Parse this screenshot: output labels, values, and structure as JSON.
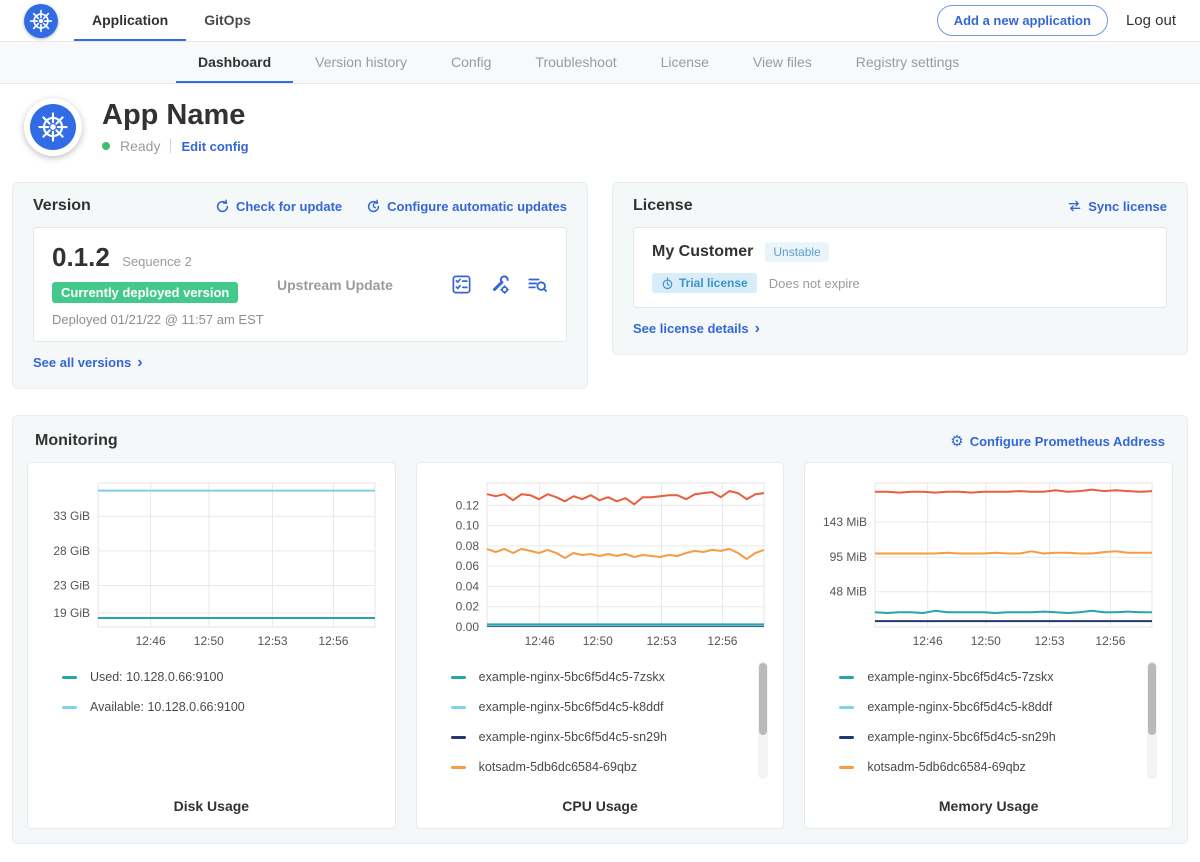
{
  "topnav": {
    "tabs": [
      {
        "label": "Application",
        "active": true
      },
      {
        "label": "GitOps",
        "active": false
      }
    ],
    "add_application_button": "Add a new application",
    "logout_label": "Log out"
  },
  "subnav": {
    "tabs": [
      {
        "label": "Dashboard",
        "active": true
      },
      {
        "label": "Version history",
        "active": false
      },
      {
        "label": "Config",
        "active": false
      },
      {
        "label": "Troubleshoot",
        "active": false
      },
      {
        "label": "License",
        "active": false
      },
      {
        "label": "View files",
        "active": false
      },
      {
        "label": "Registry settings",
        "active": false
      }
    ]
  },
  "app_header": {
    "title": "App Name",
    "status": "Ready",
    "edit_config_label": "Edit config"
  },
  "version_card": {
    "title": "Version",
    "check_update_label": "Check for update",
    "auto_updates_label": "Configure automatic updates",
    "version_number": "0.1.2",
    "sequence_label": "Sequence 2",
    "deployed_badge": "Currently deployed version",
    "deployed_at": "Deployed 01/21/22 @ 11:57 am EST",
    "source": "Upstream Update",
    "see_all_label": "See all versions"
  },
  "license_card": {
    "title": "License",
    "sync_label": "Sync license",
    "customer_name": "My Customer",
    "channel_badge": "Unstable",
    "trial_badge": "Trial license",
    "expiry": "Does not expire",
    "details_label": "See license details"
  },
  "monitoring": {
    "title": "Monitoring",
    "configure_label": "Configure Prometheus Address"
  },
  "colors": {
    "accent_blue": "#3566d6",
    "tab_underline_blue": "#326de6",
    "deployed_green": "#44c98c",
    "status_green": "#44bb66",
    "teal": "#29a5a3",
    "light_blue": "#7fd0e8",
    "navy": "#223a70",
    "orange": "#f79b44",
    "red_orange": "#ea5d3d"
  },
  "chart_data": [
    {
      "type": "line",
      "title": "Disk Usage",
      "xlabel": "",
      "ylabel": "",
      "ylim": [
        17,
        37.8
      ],
      "y_ticks": [
        {
          "v": 33,
          "label": "33 GiB"
        },
        {
          "v": 28,
          "label": "28 GiB"
        },
        {
          "v": 23,
          "label": "23 GiB"
        },
        {
          "v": 19,
          "label": "19 GiB"
        }
      ],
      "x_ticks": [
        {
          "f": 0.19,
          "label": "12:46"
        },
        {
          "f": 0.4,
          "label": "12:50"
        },
        {
          "f": 0.63,
          "label": "12:53"
        },
        {
          "f": 0.85,
          "label": "12:56"
        }
      ],
      "legend": [
        {
          "label": "Used: 10.128.0.66:9100",
          "color": "#29a5a3"
        },
        {
          "label": "Available: 10.128.0.66:9100",
          "color": "#7fd0e8"
        }
      ],
      "series": [
        {
          "name": "Available: 10.128.0.66:9100",
          "color": "#7fd0e8",
          "values": [
            36.7,
            36.7
          ]
        },
        {
          "name": "Used: 10.128.0.66:9100",
          "color": "#29a5a3",
          "values": [
            18.3,
            18.3
          ]
        }
      ],
      "has_scrollbar": false
    },
    {
      "type": "line",
      "title": "CPU Usage",
      "xlabel": "",
      "ylabel": "",
      "ylim": [
        0,
        0.142
      ],
      "y_ticks": [
        {
          "v": 0.12,
          "label": "0.12"
        },
        {
          "v": 0.1,
          "label": "0.10"
        },
        {
          "v": 0.08,
          "label": "0.08"
        },
        {
          "v": 0.06,
          "label": "0.06"
        },
        {
          "v": 0.04,
          "label": "0.04"
        },
        {
          "v": 0.02,
          "label": "0.02"
        },
        {
          "v": 0.0,
          "label": "0.00"
        }
      ],
      "x_ticks": [
        {
          "f": 0.19,
          "label": "12:46"
        },
        {
          "f": 0.4,
          "label": "12:50"
        },
        {
          "f": 0.63,
          "label": "12:53"
        },
        {
          "f": 0.85,
          "label": "12:56"
        }
      ],
      "legend": [
        {
          "label": "example-nginx-5bc6f5d4c5-7zskx",
          "color": "#29a5a3"
        },
        {
          "label": "example-nginx-5bc6f5d4c5-k8ddf",
          "color": "#7fd0e8"
        },
        {
          "label": "example-nginx-5bc6f5d4c5-sn29h",
          "color": "#223a70"
        },
        {
          "label": "kotsadm-5db6dc6584-69qbz",
          "color": "#f79b44"
        }
      ],
      "series": [
        {
          "name": "example-nginx-5bc6f5d4c5-sn29h",
          "color": "#223a70",
          "values": [
            0.001,
            0.001
          ]
        },
        {
          "name": "example-nginx-5bc6f5d4c5-k8ddf",
          "color": "#7fd0e8",
          "values": [
            0.0018,
            0.0018
          ]
        },
        {
          "name": "example-nginx-5bc6f5d4c5-7zskx",
          "color": "#29a5a3",
          "values": [
            0.0026,
            0.0026
          ]
        },
        {
          "name": "kotsadm-5db6dc6584-69qbz",
          "color": "#f79b44",
          "values": [
            0.077,
            0.074,
            0.077,
            0.073,
            0.077,
            0.075,
            0.073,
            0.076,
            0.073,
            0.068,
            0.073,
            0.071,
            0.072,
            0.07,
            0.072,
            0.07,
            0.072,
            0.069,
            0.071,
            0.07,
            0.069,
            0.071,
            0.07,
            0.073,
            0.075,
            0.074,
            0.076,
            0.075,
            0.077,
            0.073,
            0.067,
            0.073,
            0.076
          ]
        },
        {
          "name": "",
          "color": "#ea5d3d",
          "values": [
            0.131,
            0.129,
            0.131,
            0.125,
            0.131,
            0.13,
            0.126,
            0.131,
            0.128,
            0.124,
            0.129,
            0.126,
            0.13,
            0.125,
            0.128,
            0.124,
            0.127,
            0.121,
            0.128,
            0.128,
            0.129,
            0.13,
            0.13,
            0.126,
            0.131,
            0.132,
            0.133,
            0.128,
            0.134,
            0.132,
            0.126,
            0.131,
            0.132
          ]
        }
      ],
      "has_scrollbar": true
    },
    {
      "type": "line",
      "title": "Memory Usage",
      "xlabel": "",
      "ylabel": "",
      "ylim": [
        0,
        196
      ],
      "y_ticks": [
        {
          "v": 143,
          "label": "143 MiB"
        },
        {
          "v": 95,
          "label": "95 MiB"
        },
        {
          "v": 48,
          "label": "48 MiB"
        }
      ],
      "x_ticks": [
        {
          "f": 0.19,
          "label": "12:46"
        },
        {
          "f": 0.4,
          "label": "12:50"
        },
        {
          "f": 0.63,
          "label": "12:53"
        },
        {
          "f": 0.85,
          "label": "12:56"
        }
      ],
      "legend": [
        {
          "label": "example-nginx-5bc6f5d4c5-7zskx",
          "color": "#29a5a3"
        },
        {
          "label": "example-nginx-5bc6f5d4c5-k8ddf",
          "color": "#7fd0e8"
        },
        {
          "label": "example-nginx-5bc6f5d4c5-sn29h",
          "color": "#223a70"
        },
        {
          "label": "kotsadm-5db6dc6584-69qbz",
          "color": "#f79b44"
        }
      ],
      "series": [
        {
          "name": "example-nginx-5bc6f5d4c5-sn29h",
          "color": "#223a70",
          "values": [
            8,
            8
          ]
        },
        {
          "name": "example-nginx-5bc6f5d4c5-7zskx",
          "color": "#29a5a3",
          "values": [
            20,
            19,
            20,
            20,
            19,
            22,
            20,
            20,
            20,
            20,
            19,
            20,
            20,
            20,
            21,
            20,
            19,
            20,
            22,
            20,
            20,
            21,
            20,
            20
          ]
        },
        {
          "name": "kotsadm-5db6dc6584-69qbz",
          "color": "#f79b44",
          "values": [
            100,
            100,
            100,
            100,
            100,
            100,
            101,
            100,
            100,
            100,
            101,
            100,
            100,
            103,
            100,
            101,
            101,
            100,
            100,
            102,
            103,
            101,
            101,
            101
          ]
        },
        {
          "name": "",
          "color": "#ea5d3d",
          "values": [
            184,
            184,
            183,
            184,
            184,
            183,
            184,
            184,
            183,
            184,
            184,
            184,
            185,
            184,
            184,
            186,
            184,
            185,
            187,
            185,
            186,
            185,
            184,
            185
          ]
        }
      ],
      "has_scrollbar": true
    }
  ]
}
